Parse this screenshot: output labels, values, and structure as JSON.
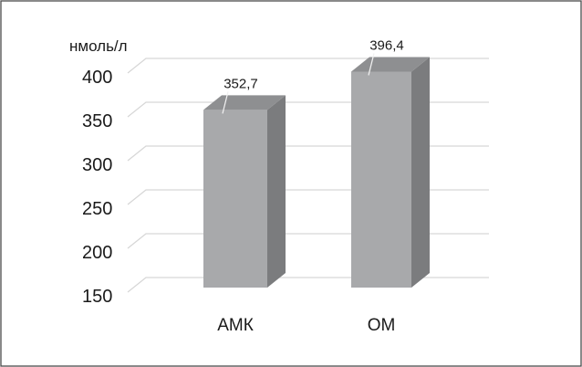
{
  "chart_data": {
    "type": "bar",
    "style": "3d-column",
    "y_unit_label": "нмоль/л",
    "categories": [
      "АМК",
      "ОМ"
    ],
    "series": [
      {
        "values": [
          352.7,
          396.4
        ]
      }
    ],
    "data_labels": [
      "352,7",
      "396,4"
    ],
    "y_ticks": [
      "150",
      "200",
      "250",
      "300",
      "350",
      "400"
    ],
    "ylim": [
      150,
      430
    ],
    "grid": true,
    "legend": "none",
    "colors": {
      "bar_front": "#a8a9ab",
      "bar_side": "#7b7c7e",
      "bar_top": "#8e8f91",
      "grid": "#d6d6d6"
    }
  }
}
